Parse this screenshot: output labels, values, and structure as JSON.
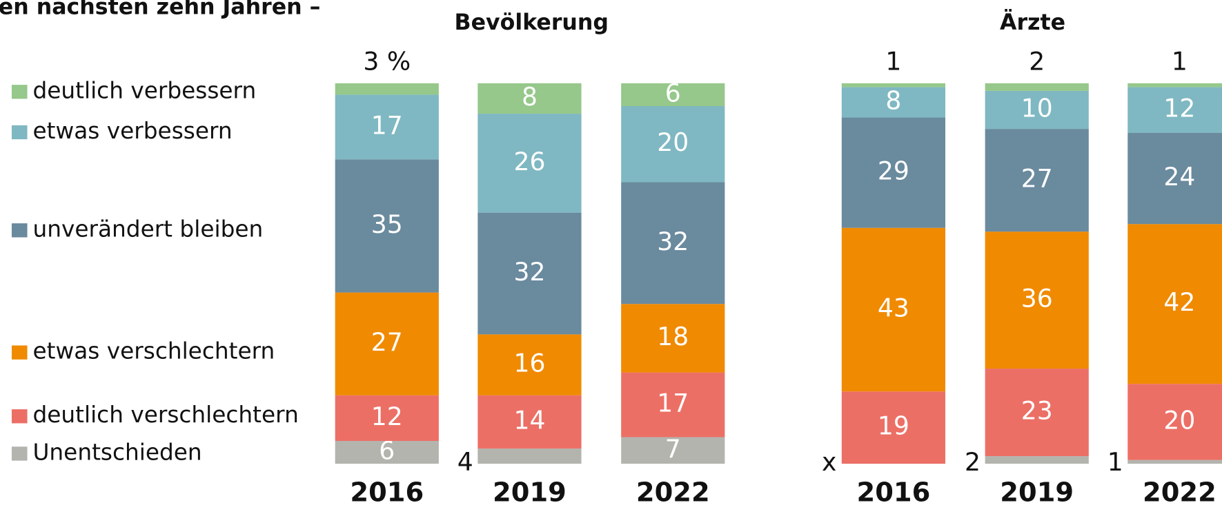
{
  "heading": "en nächsten zehn Jahren –",
  "chart_data": [
    {
      "type": "bar",
      "stacked": true,
      "title": "Bevölkerung",
      "categories": [
        "2016",
        "2019",
        "2022"
      ],
      "series": [
        {
          "name": "Unentschieden",
          "color": "#b4b4ae",
          "values": [
            6,
            4,
            7
          ]
        },
        {
          "name": "deutlich verschlechtern",
          "color": "#ec6f66",
          "values": [
            12,
            14,
            17
          ]
        },
        {
          "name": "etwas verschlechtern",
          "color": "#f08a00",
          "values": [
            27,
            16,
            18
          ]
        },
        {
          "name": "unverändert bleiben",
          "color": "#6a8a9e",
          "values": [
            35,
            32,
            32
          ]
        },
        {
          "name": "etwas verbessern",
          "color": "#7fb8c2",
          "values": [
            17,
            26,
            20
          ]
        },
        {
          "name": "deutlich verbessern",
          "color": "#95c88a",
          "values": [
            3,
            8,
            6
          ],
          "value_labels": [
            "3 %",
            "8",
            "6"
          ]
        }
      ]
    },
    {
      "type": "bar",
      "stacked": true,
      "title": "Ärzte",
      "categories": [
        "2016",
        "2019",
        "2022"
      ],
      "series": [
        {
          "color": "#b4b4ae",
          "values": [
            null,
            2,
            1
          ],
          "value_labels": [
            "x",
            "2",
            "1"
          ]
        },
        {
          "color": "#ec6f66",
          "values": [
            19,
            23,
            20
          ]
        },
        {
          "color": "#f08a00",
          "values": [
            43,
            36,
            42
          ]
        },
        {
          "color": "#6a8a9e",
          "values": [
            29,
            27,
            24
          ]
        },
        {
          "color": "#7fb8c2",
          "values": [
            8,
            10,
            12
          ]
        },
        {
          "color": "#95c88a",
          "values": [
            1,
            2,
            1
          ]
        }
      ]
    }
  ]
}
